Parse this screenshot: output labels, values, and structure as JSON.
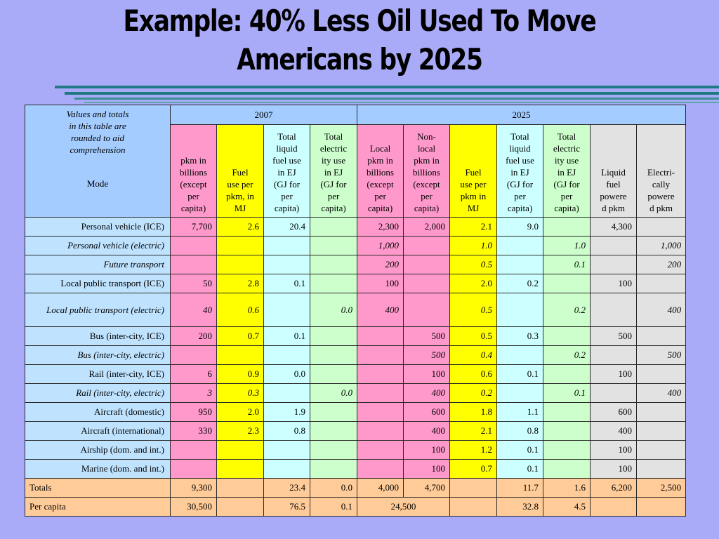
{
  "title": {
    "line1": "Example: 40% Less Oil Used To Move",
    "line2": "Americans by 2025"
  },
  "table": {
    "corner_note": [
      "Values and totals",
      "in this table are",
      "rounded to aid",
      "comprehension"
    ],
    "corner_mode": "Mode",
    "year_2007": "2007",
    "year_2025": "2025",
    "headers_2007": [
      [
        "pkm in",
        "billions",
        "(except",
        "per",
        "capita)"
      ],
      [
        "Fuel",
        "use per",
        "pkm, in",
        "MJ"
      ],
      [
        "Total",
        "liquid",
        "fuel use",
        "in EJ",
        "(GJ for",
        "per",
        "capita)"
      ],
      [
        "Total",
        "electric",
        "ity use",
        "in EJ",
        "(GJ for",
        "per",
        "capita)"
      ]
    ],
    "headers_2025": [
      [
        "Local",
        "pkm in",
        "billions",
        "(except",
        "per",
        "capita)"
      ],
      [
        "Non-",
        "local",
        "pkm in",
        "billions",
        "(except",
        "per",
        "capita)"
      ],
      [
        "Fuel",
        "use per",
        "pkm in",
        "MJ"
      ],
      [
        "Total",
        "liquid",
        "fuel use",
        "in EJ",
        "(GJ for",
        "per",
        "capita)"
      ],
      [
        "Total",
        "electric",
        "ity use",
        "in EJ",
        "(GJ for",
        "per",
        "capita)"
      ],
      [
        "Liquid",
        "fuel",
        "powere",
        "d pkm"
      ],
      [
        "Electri-",
        "cally",
        "powere",
        "d pkm"
      ]
    ],
    "rows": [
      {
        "mode": "Personal vehicle (ICE)",
        "italic": false,
        "tall": false,
        "cells": [
          "7,700",
          "2.6",
          "20.4",
          "",
          "2,300",
          "2,000",
          "2.1",
          "9.0",
          "",
          "4,300",
          ""
        ]
      },
      {
        "mode": "Personal vehicle (electric)",
        "italic": true,
        "tall": false,
        "cells": [
          "",
          "",
          "",
          "",
          "1,000",
          "",
          "1.0",
          "",
          "1.0",
          "",
          "1,000"
        ]
      },
      {
        "mode": "Future transport",
        "italic": true,
        "tall": false,
        "cells": [
          "",
          "",
          "",
          "",
          "200",
          "",
          "0.5",
          "",
          "0.1",
          "",
          "200"
        ]
      },
      {
        "mode": "Local public transport (ICE)",
        "italic": false,
        "tall": false,
        "cells": [
          "50",
          "2.8",
          "0.1",
          "",
          "100",
          "",
          "2.0",
          "0.2",
          "",
          "100",
          ""
        ]
      },
      {
        "mode": "Local public transport (electric)",
        "italic": true,
        "tall": true,
        "cells": [
          "40",
          "0.6",
          "",
          "0.0",
          "400",
          "",
          "0.5",
          "",
          "0.2",
          "",
          "400"
        ]
      },
      {
        "mode": "Bus (inter-city, ICE)",
        "italic": false,
        "tall": false,
        "cells": [
          "200",
          "0.7",
          "0.1",
          "",
          "",
          "500",
          "0.5",
          "0.3",
          "",
          "500",
          ""
        ]
      },
      {
        "mode": "Bus (inter-city, electric)",
        "italic": true,
        "tall": false,
        "cells": [
          "",
          "",
          "",
          "",
          "",
          "500",
          "0.4",
          "",
          "0.2",
          "",
          "500"
        ]
      },
      {
        "mode": "Rail (inter-city, ICE)",
        "italic": false,
        "tall": false,
        "cells": [
          "6",
          "0.9",
          "0.0",
          "",
          "",
          "100",
          "0.6",
          "0.1",
          "",
          "100",
          ""
        ]
      },
      {
        "mode": "Rail (inter-city, electric)",
        "italic": true,
        "tall": false,
        "cells": [
          "3",
          "0.3",
          "",
          "0.0",
          "",
          "400",
          "0.2",
          "",
          "0.1",
          "",
          "400"
        ]
      },
      {
        "mode": "Aircraft (domestic)",
        "italic": false,
        "tall": false,
        "cells": [
          "950",
          "2.0",
          "1.9",
          "",
          "",
          "600",
          "1.8",
          "1.1",
          "",
          "600",
          ""
        ]
      },
      {
        "mode": "Aircraft (international)",
        "italic": false,
        "tall": false,
        "cells": [
          "330",
          "2.3",
          "0.8",
          "",
          "",
          "400",
          "2.1",
          "0.8",
          "",
          "400",
          ""
        ]
      },
      {
        "mode": "Airship (dom. and int.)",
        "italic": false,
        "tall": false,
        "cells": [
          "",
          "",
          "",
          "",
          "",
          "100",
          "1.2",
          "0.1",
          "",
          "100",
          ""
        ]
      },
      {
        "mode": "Marine (dom. and int.)",
        "italic": false,
        "tall": false,
        "cells": [
          "",
          "",
          "",
          "",
          "",
          "100",
          "0.7",
          "0.1",
          "",
          "100",
          ""
        ]
      }
    ],
    "totals": {
      "label": "Totals",
      "cells": [
        "9,300",
        "",
        "23.4",
        "0.0",
        "4,000",
        "4,700",
        "",
        "11.7",
        "1.6",
        "6,200",
        "2,500"
      ]
    },
    "per_capita": {
      "label": "Per capita",
      "cells": [
        "30,500",
        "",
        "76.5",
        "0.1",
        "24,500",
        "",
        "32.8",
        "4.5",
        "",
        ""
      ]
    }
  },
  "colors": {
    "background": "#a9abf8",
    "year_header": "#a4ccff",
    "mode_column": "#bfe3ff",
    "pkm": "#ff99cc",
    "fuel_use": "#ffff00",
    "liquid_total": "#ccffff",
    "electric_total": "#ccffcc",
    "powered_pkm": "#e2e2e2",
    "totals": "#ffcc99"
  }
}
